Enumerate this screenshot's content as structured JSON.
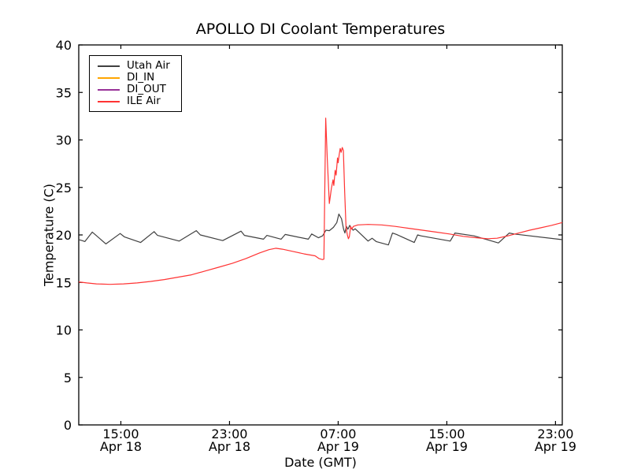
{
  "chart_data": {
    "type": "line",
    "title": "APOLLO DI Coolant Temperatures",
    "xlabel": "Date (GMT)",
    "ylabel": "Temperature (C)",
    "ylim": [
      0,
      40
    ],
    "yticks": [
      0,
      5,
      10,
      15,
      20,
      25,
      30,
      35,
      40
    ],
    "xlim": [
      11.9,
      47.5
    ],
    "x_unit": "hours since Apr 18 00:00 GMT",
    "grid": false,
    "background": "#ffffff",
    "frame_color": "#000000",
    "xticks": [
      {
        "hour": 15,
        "time": "15:00",
        "date": "Apr 18"
      },
      {
        "hour": 23,
        "time": "23:00",
        "date": "Apr 18"
      },
      {
        "hour": 31,
        "time": "07:00",
        "date": "Apr 19"
      },
      {
        "hour": 39,
        "time": "15:00",
        "date": "Apr 19"
      },
      {
        "hour": 47,
        "time": "23:00",
        "date": "Apr 19"
      }
    ],
    "legend": {
      "position": "upper left",
      "entries": [
        "Utah Air",
        "DI_IN",
        "DI_OUT",
        "ILE Air"
      ]
    },
    "series": [
      {
        "name": "Utah Air",
        "color": "#404040",
        "points": [
          [
            11.9,
            19.5
          ],
          [
            12.15,
            19.4
          ],
          [
            12.35,
            19.3
          ],
          [
            12.9,
            20.3
          ],
          [
            13.9,
            19.05
          ],
          [
            14.95,
            20.15
          ],
          [
            15.25,
            19.8
          ],
          [
            16.45,
            19.2
          ],
          [
            17.45,
            20.35
          ],
          [
            17.7,
            19.95
          ],
          [
            19.3,
            19.35
          ],
          [
            20.55,
            20.45
          ],
          [
            20.85,
            20.0
          ],
          [
            22.5,
            19.4
          ],
          [
            23.85,
            20.4
          ],
          [
            24.1,
            19.95
          ],
          [
            25.5,
            19.55
          ],
          [
            25.75,
            19.95
          ],
          [
            26.8,
            19.55
          ],
          [
            27.1,
            20.05
          ],
          [
            28.8,
            19.55
          ],
          [
            29.05,
            20.1
          ],
          [
            29.55,
            19.7
          ],
          [
            29.85,
            19.9
          ],
          [
            30.1,
            20.5
          ],
          [
            30.35,
            20.45
          ],
          [
            30.65,
            20.8
          ],
          [
            30.9,
            21.3
          ],
          [
            31.05,
            22.2
          ],
          [
            31.25,
            21.7
          ],
          [
            31.4,
            20.6
          ],
          [
            31.5,
            20.2
          ],
          [
            31.6,
            20.9
          ],
          [
            31.72,
            20.6
          ],
          [
            31.85,
            21.0
          ],
          [
            31.95,
            20.75
          ],
          [
            32.1,
            20.5
          ],
          [
            32.25,
            20.65
          ],
          [
            33.2,
            19.35
          ],
          [
            33.5,
            19.65
          ],
          [
            33.8,
            19.3
          ],
          [
            34.7,
            18.95
          ],
          [
            35.0,
            20.2
          ],
          [
            35.3,
            20.05
          ],
          [
            36.6,
            19.2
          ],
          [
            36.85,
            20.0
          ],
          [
            37.1,
            19.9
          ],
          [
            39.25,
            19.35
          ],
          [
            39.6,
            20.2
          ],
          [
            41.0,
            19.9
          ],
          [
            42.8,
            19.15
          ],
          [
            43.6,
            20.2
          ],
          [
            43.95,
            20.1
          ],
          [
            47.5,
            19.5
          ]
        ]
      },
      {
        "name": "DI_IN",
        "color": "#ffa500",
        "points": []
      },
      {
        "name": "DI_OUT",
        "color": "#993399",
        "points": []
      },
      {
        "name": "ILE Air",
        "color": "#ff3333",
        "points": [
          [
            11.9,
            15.05
          ],
          [
            12.5,
            14.95
          ],
          [
            13.2,
            14.85
          ],
          [
            14.2,
            14.8
          ],
          [
            15.2,
            14.85
          ],
          [
            16.2,
            14.95
          ],
          [
            17.2,
            15.1
          ],
          [
            18.2,
            15.3
          ],
          [
            19.2,
            15.55
          ],
          [
            20.2,
            15.8
          ],
          [
            21.2,
            16.2
          ],
          [
            22.2,
            16.6
          ],
          [
            23.2,
            17.0
          ],
          [
            24.2,
            17.5
          ],
          [
            25.2,
            18.1
          ],
          [
            25.9,
            18.45
          ],
          [
            26.4,
            18.6
          ],
          [
            26.9,
            18.5
          ],
          [
            27.7,
            18.25
          ],
          [
            28.5,
            18.0
          ],
          [
            29.3,
            17.8
          ],
          [
            29.6,
            17.5
          ],
          [
            29.85,
            17.4
          ],
          [
            29.95,
            17.45
          ],
          [
            30.08,
            32.3
          ],
          [
            30.2,
            28.0
          ],
          [
            30.35,
            23.3
          ],
          [
            30.5,
            24.9
          ],
          [
            30.62,
            25.8
          ],
          [
            30.68,
            25.2
          ],
          [
            30.78,
            26.8
          ],
          [
            30.85,
            26.3
          ],
          [
            30.95,
            28.1
          ],
          [
            31.0,
            27.6
          ],
          [
            31.08,
            28.5
          ],
          [
            31.15,
            29.1
          ],
          [
            31.22,
            28.7
          ],
          [
            31.3,
            29.2
          ],
          [
            31.38,
            28.9
          ],
          [
            31.48,
            24.5
          ],
          [
            31.58,
            20.8
          ],
          [
            31.68,
            20.0
          ],
          [
            31.75,
            19.6
          ],
          [
            31.82,
            19.8
          ],
          [
            31.92,
            20.9
          ],
          [
            32.0,
            20.6
          ],
          [
            32.12,
            20.9
          ],
          [
            32.45,
            21.05
          ],
          [
            33.2,
            21.1
          ],
          [
            34.2,
            21.05
          ],
          [
            35.2,
            20.9
          ],
          [
            36.2,
            20.7
          ],
          [
            37.2,
            20.5
          ],
          [
            38.2,
            20.3
          ],
          [
            39.2,
            20.1
          ],
          [
            40.2,
            19.85
          ],
          [
            41.2,
            19.7
          ],
          [
            42.0,
            19.6
          ],
          [
            42.7,
            19.65
          ],
          [
            43.5,
            19.9
          ],
          [
            44.3,
            20.2
          ],
          [
            45.1,
            20.5
          ],
          [
            45.9,
            20.75
          ],
          [
            46.7,
            21.0
          ],
          [
            47.5,
            21.3
          ]
        ]
      }
    ]
  }
}
